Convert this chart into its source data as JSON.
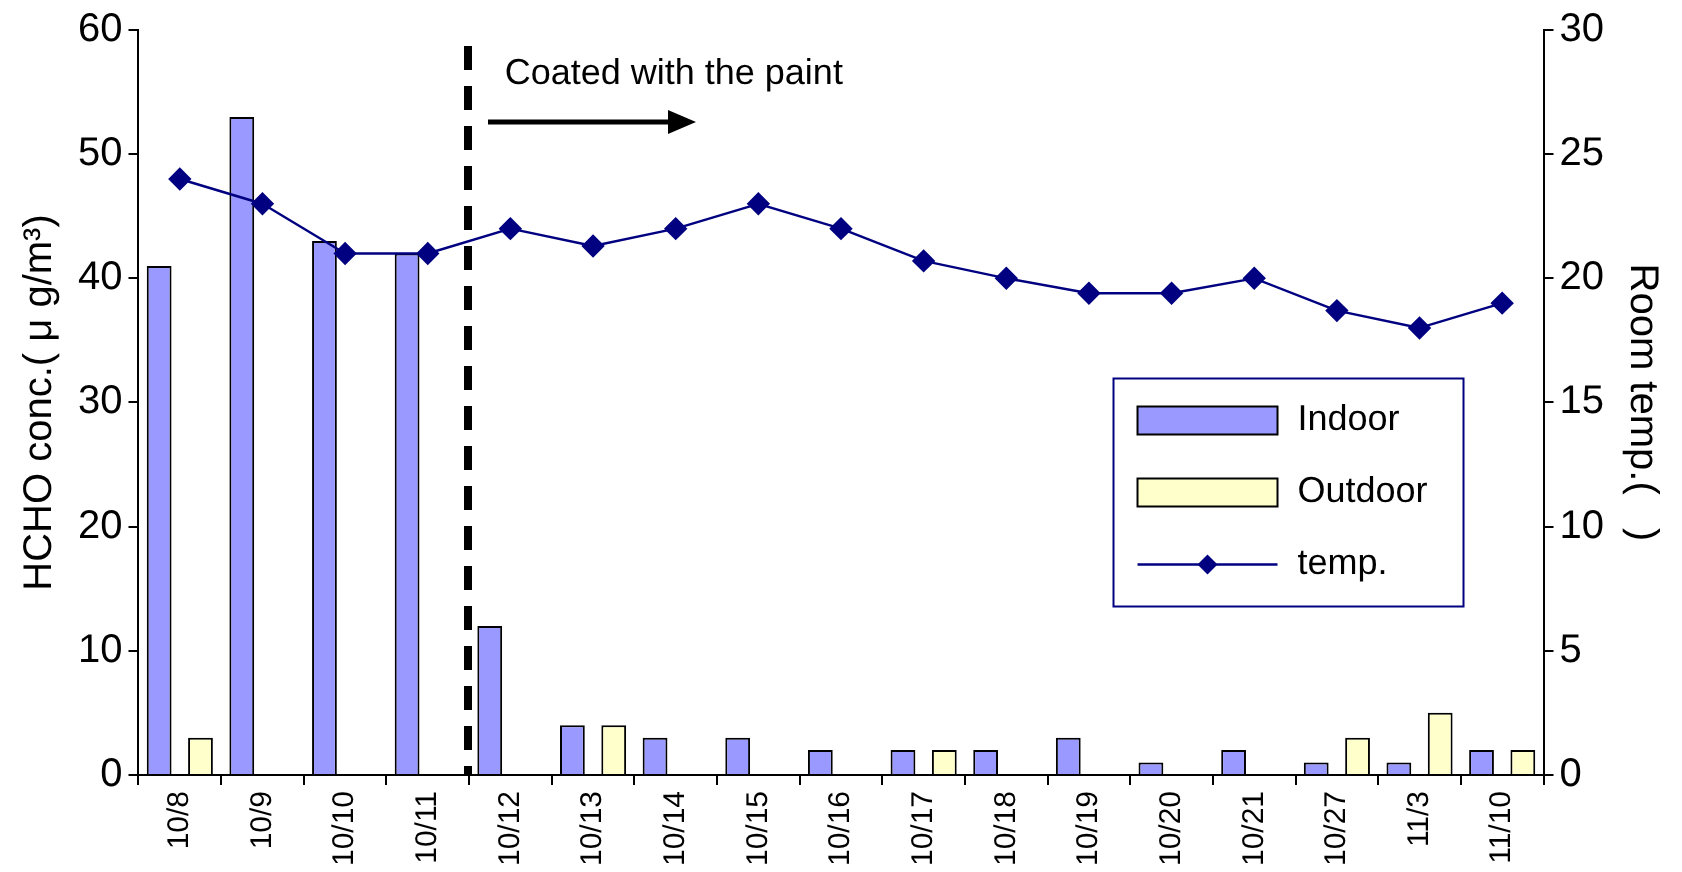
{
  "chart_data": {
    "type": "bar",
    "categories": [
      "10/8",
      "10/9",
      "10/10",
      "10/11",
      "10/12",
      "10/13",
      "10/14",
      "10/15",
      "10/16",
      "10/17",
      "10/18",
      "10/19",
      "10/20",
      "10/21",
      "10/27",
      "11/3",
      "11/10"
    ],
    "series": [
      {
        "name": "Indoor",
        "color": "#9999ff",
        "values": [
          41,
          53,
          43,
          42,
          12,
          4,
          3,
          3,
          2,
          2,
          2,
          3,
          1,
          2,
          1,
          1,
          2
        ]
      },
      {
        "name": "Outdoor",
        "color": "#ffffcc",
        "values": [
          3,
          0,
          0,
          0,
          0,
          4,
          0,
          0,
          0,
          2,
          0,
          0,
          0,
          0,
          3,
          5,
          2
        ]
      },
      {
        "name": "temp.",
        "type": "line",
        "axis": "y2",
        "color": "#000080",
        "marker": "diamond",
        "values": [
          24,
          23,
          21,
          21,
          22,
          21.3,
          22,
          23,
          22,
          20.7,
          20,
          19.4,
          19.4,
          20,
          18.7,
          18,
          19
        ]
      }
    ],
    "ylabel": "HCHO conc.( μ g/m³)",
    "y2label": "Room temp.(   )",
    "ylim": [
      0,
      60
    ],
    "yticks": [
      0,
      10,
      20,
      30,
      40,
      50,
      60
    ],
    "y2lim": [
      0,
      30
    ],
    "y2ticks": [
      0,
      5,
      10,
      15,
      20,
      25,
      30
    ],
    "annotations": [
      "Coated with the paint"
    ],
    "legend": "right",
    "grid": false
  }
}
